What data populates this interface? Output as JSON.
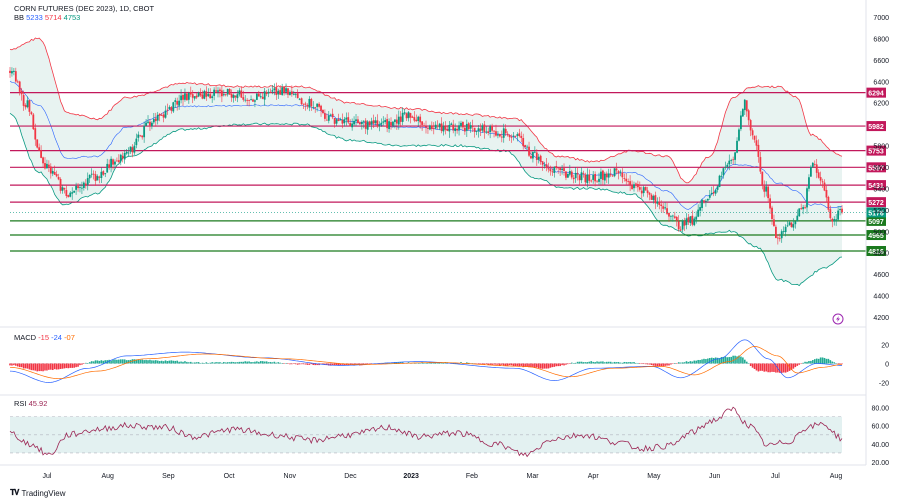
{
  "header": {
    "title": "CORN FUTURES (DEC 2023), 1D, CBOT",
    "bb_name": "BB",
    "bb_values": [
      "5233",
      "5714",
      "4753"
    ]
  },
  "macd_header": {
    "name": "MACD",
    "values": [
      "-15",
      "-24",
      "-07"
    ]
  },
  "rsi_header": {
    "name": "RSI",
    "value": "45.92"
  },
  "footer": {
    "brand": "TradingView"
  },
  "colors": {
    "up": "#089981",
    "down": "#f23645",
    "upper_band": "#f23645",
    "lower_band": "#089981",
    "basis": "#2962ff",
    "band_fill": "#e8f3f1",
    "resistance": "#c2185b",
    "support": "#1b7a1e",
    "rsi_line": "#9c2755",
    "rsi_fill": "#e3f1f1"
  },
  "chart_data": [
    {
      "type": "line",
      "title": "CORN FUTURES (DEC 2023), 1D, CBOT",
      "x_ticks": [
        "Jul",
        "Aug",
        "Sep",
        "Oct",
        "Nov",
        "Dec",
        "2023",
        "Feb",
        "Mar",
        "Apr",
        "May",
        "Jun",
        "Jul",
        "Aug"
      ],
      "y_ticks": [
        7000,
        6800,
        6600,
        6400,
        6200,
        5800,
        5600,
        5400,
        5200,
        5000,
        4800,
        4600,
        4400,
        4200
      ],
      "ylim": [
        4200,
        7000
      ],
      "horizontal_levels": [
        {
          "value": 6294,
          "label": "6294",
          "kind": "resistance"
        },
        {
          "value": 5982,
          "label": "5982",
          "kind": "resistance"
        },
        {
          "value": 5753,
          "label": "5753",
          "kind": "resistance"
        },
        {
          "value": 5597,
          "label": "5597",
          "kind": "resistance"
        },
        {
          "value": 5431,
          "label": "5431",
          "kind": "resistance"
        },
        {
          "value": 5272,
          "label": "5272",
          "kind": "resistance"
        },
        {
          "value": 5097,
          "label": "5097",
          "kind": "support"
        },
        {
          "value": 4965,
          "label": "4965",
          "kind": "support"
        },
        {
          "value": 4816,
          "label": "4816",
          "kind": "support"
        }
      ],
      "last_price": {
        "value": 5176,
        "label": "5176"
      },
      "close_anchors": [
        {
          "x": 0,
          "y": 6500
        },
        {
          "x": 8,
          "y": 6200
        },
        {
          "x": 18,
          "y": 5600
        },
        {
          "x": 30,
          "y": 5350
        },
        {
          "x": 42,
          "y": 5500
        },
        {
          "x": 58,
          "y": 5700
        },
        {
          "x": 75,
          "y": 6050
        },
        {
          "x": 90,
          "y": 6250
        },
        {
          "x": 110,
          "y": 6300
        },
        {
          "x": 125,
          "y": 6250
        },
        {
          "x": 140,
          "y": 6300
        },
        {
          "x": 155,
          "y": 6200
        },
        {
          "x": 165,
          "y": 6050
        },
        {
          "x": 180,
          "y": 6000
        },
        {
          "x": 195,
          "y": 6000
        },
        {
          "x": 205,
          "y": 6100
        },
        {
          "x": 215,
          "y": 5950
        },
        {
          "x": 230,
          "y": 5980
        },
        {
          "x": 245,
          "y": 5950
        },
        {
          "x": 260,
          "y": 5900
        },
        {
          "x": 270,
          "y": 5700
        },
        {
          "x": 282,
          "y": 5550
        },
        {
          "x": 298,
          "y": 5500
        },
        {
          "x": 312,
          "y": 5550
        },
        {
          "x": 322,
          "y": 5420
        },
        {
          "x": 335,
          "y": 5250
        },
        {
          "x": 345,
          "y": 5050
        },
        {
          "x": 350,
          "y": 5100
        },
        {
          "x": 360,
          "y": 5350
        },
        {
          "x": 372,
          "y": 5700
        },
        {
          "x": 378,
          "y": 6200
        },
        {
          "x": 382,
          "y": 5900
        },
        {
          "x": 388,
          "y": 5400
        },
        {
          "x": 395,
          "y": 4950
        },
        {
          "x": 400,
          "y": 5050
        },
        {
          "x": 408,
          "y": 5200
        },
        {
          "x": 413,
          "y": 5650
        },
        {
          "x": 418,
          "y": 5450
        },
        {
          "x": 423,
          "y": 5100
        },
        {
          "x": 428,
          "y": 5176
        }
      ],
      "bands_anchors": {
        "upper": [
          {
            "x": 0,
            "y": 6700
          },
          {
            "x": 15,
            "y": 6800
          },
          {
            "x": 30,
            "y": 6100
          },
          {
            "x": 45,
            "y": 6050
          },
          {
            "x": 60,
            "y": 6250
          },
          {
            "x": 90,
            "y": 6380
          },
          {
            "x": 120,
            "y": 6350
          },
          {
            "x": 150,
            "y": 6350
          },
          {
            "x": 175,
            "y": 6200
          },
          {
            "x": 200,
            "y": 6150
          },
          {
            "x": 230,
            "y": 6100
          },
          {
            "x": 260,
            "y": 6050
          },
          {
            "x": 282,
            "y": 5700
          },
          {
            "x": 300,
            "y": 5650
          },
          {
            "x": 320,
            "y": 5750
          },
          {
            "x": 338,
            "y": 5700
          },
          {
            "x": 348,
            "y": 5450
          },
          {
            "x": 360,
            "y": 5700
          },
          {
            "x": 372,
            "y": 6250
          },
          {
            "x": 382,
            "y": 6350
          },
          {
            "x": 395,
            "y": 6350
          },
          {
            "x": 405,
            "y": 6250
          },
          {
            "x": 412,
            "y": 5900
          },
          {
            "x": 428,
            "y": 5700
          }
        ],
        "lower": [
          {
            "x": 0,
            "y": 6100
          },
          {
            "x": 15,
            "y": 5550
          },
          {
            "x": 28,
            "y": 5250
          },
          {
            "x": 45,
            "y": 5350
          },
          {
            "x": 60,
            "y": 5700
          },
          {
            "x": 90,
            "y": 5950
          },
          {
            "x": 120,
            "y": 6000
          },
          {
            "x": 150,
            "y": 6000
          },
          {
            "x": 175,
            "y": 5850
          },
          {
            "x": 200,
            "y": 5800
          },
          {
            "x": 230,
            "y": 5800
          },
          {
            "x": 255,
            "y": 5750
          },
          {
            "x": 270,
            "y": 5500
          },
          {
            "x": 285,
            "y": 5400
          },
          {
            "x": 300,
            "y": 5400
          },
          {
            "x": 320,
            "y": 5350
          },
          {
            "x": 338,
            "y": 5050
          },
          {
            "x": 350,
            "y": 4960
          },
          {
            "x": 370,
            "y": 5000
          },
          {
            "x": 385,
            "y": 4850
          },
          {
            "x": 395,
            "y": 4550
          },
          {
            "x": 405,
            "y": 4500
          },
          {
            "x": 418,
            "y": 4650
          },
          {
            "x": 428,
            "y": 4753
          }
        ]
      }
    },
    {
      "type": "bar",
      "title": "MACD",
      "y_ticks": [
        20,
        0,
        -20
      ],
      "ylim": [
        -30,
        30
      ],
      "histogram_anchors": [
        {
          "x": 0,
          "y": -2
        },
        {
          "x": 15,
          "y": -8
        },
        {
          "x": 30,
          "y": -5
        },
        {
          "x": 45,
          "y": 3
        },
        {
          "x": 60,
          "y": 4
        },
        {
          "x": 80,
          "y": 3
        },
        {
          "x": 100,
          "y": 1
        },
        {
          "x": 130,
          "y": 2
        },
        {
          "x": 150,
          "y": -1
        },
        {
          "x": 175,
          "y": -2
        },
        {
          "x": 200,
          "y": 1
        },
        {
          "x": 230,
          "y": 1
        },
        {
          "x": 255,
          "y": -2
        },
        {
          "x": 275,
          "y": -5
        },
        {
          "x": 295,
          "y": 2
        },
        {
          "x": 320,
          "y": 1
        },
        {
          "x": 335,
          "y": -3
        },
        {
          "x": 348,
          "y": 2
        },
        {
          "x": 362,
          "y": 6
        },
        {
          "x": 375,
          "y": 8
        },
        {
          "x": 385,
          "y": -8
        },
        {
          "x": 398,
          "y": -10
        },
        {
          "x": 410,
          "y": 2
        },
        {
          "x": 418,
          "y": 6
        },
        {
          "x": 428,
          "y": -1
        }
      ],
      "macd_anchors": [
        {
          "x": 0,
          "y": -8
        },
        {
          "x": 20,
          "y": -20
        },
        {
          "x": 40,
          "y": -5
        },
        {
          "x": 60,
          "y": 8
        },
        {
          "x": 90,
          "y": 12
        },
        {
          "x": 130,
          "y": 6
        },
        {
          "x": 170,
          "y": -2
        },
        {
          "x": 210,
          "y": 2
        },
        {
          "x": 260,
          "y": -5
        },
        {
          "x": 280,
          "y": -18
        },
        {
          "x": 300,
          "y": -5
        },
        {
          "x": 330,
          "y": -3
        },
        {
          "x": 345,
          "y": -15
        },
        {
          "x": 365,
          "y": 5
        },
        {
          "x": 378,
          "y": 25
        },
        {
          "x": 390,
          "y": 5
        },
        {
          "x": 400,
          "y": -15
        },
        {
          "x": 415,
          "y": 0
        },
        {
          "x": 428,
          "y": -2
        }
      ],
      "signal_anchors": [
        {
          "x": 0,
          "y": -4
        },
        {
          "x": 25,
          "y": -16
        },
        {
          "x": 45,
          "y": -8
        },
        {
          "x": 70,
          "y": 5
        },
        {
          "x": 100,
          "y": 10
        },
        {
          "x": 140,
          "y": 5
        },
        {
          "x": 180,
          "y": -1
        },
        {
          "x": 220,
          "y": 1
        },
        {
          "x": 265,
          "y": -3
        },
        {
          "x": 288,
          "y": -14
        },
        {
          "x": 310,
          "y": -5
        },
        {
          "x": 335,
          "y": -3
        },
        {
          "x": 352,
          "y": -12
        },
        {
          "x": 370,
          "y": 2
        },
        {
          "x": 383,
          "y": 18
        },
        {
          "x": 395,
          "y": 8
        },
        {
          "x": 405,
          "y": -10
        },
        {
          "x": 418,
          "y": -4
        },
        {
          "x": 428,
          "y": -1
        }
      ]
    },
    {
      "type": "line",
      "title": "RSI",
      "y_ticks": [
        80,
        60,
        40,
        20
      ],
      "ylim": [
        20,
        85
      ],
      "band": [
        30,
        70
      ],
      "rsi_anchors": [
        {
          "x": 0,
          "y": 52
        },
        {
          "x": 10,
          "y": 40
        },
        {
          "x": 20,
          "y": 28
        },
        {
          "x": 30,
          "y": 50
        },
        {
          "x": 45,
          "y": 56
        },
        {
          "x": 60,
          "y": 60
        },
        {
          "x": 80,
          "y": 58
        },
        {
          "x": 95,
          "y": 48
        },
        {
          "x": 115,
          "y": 56
        },
        {
          "x": 135,
          "y": 50
        },
        {
          "x": 155,
          "y": 44
        },
        {
          "x": 175,
          "y": 50
        },
        {
          "x": 195,
          "y": 58
        },
        {
          "x": 210,
          "y": 48
        },
        {
          "x": 230,
          "y": 52
        },
        {
          "x": 250,
          "y": 40
        },
        {
          "x": 265,
          "y": 28
        },
        {
          "x": 280,
          "y": 46
        },
        {
          "x": 295,
          "y": 50
        },
        {
          "x": 312,
          "y": 42
        },
        {
          "x": 325,
          "y": 35
        },
        {
          "x": 340,
          "y": 38
        },
        {
          "x": 350,
          "y": 52
        },
        {
          "x": 362,
          "y": 66
        },
        {
          "x": 372,
          "y": 78
        },
        {
          "x": 380,
          "y": 60
        },
        {
          "x": 390,
          "y": 38
        },
        {
          "x": 400,
          "y": 42
        },
        {
          "x": 410,
          "y": 58
        },
        {
          "x": 418,
          "y": 62
        },
        {
          "x": 428,
          "y": 46
        }
      ],
      "last_value": 45.92
    }
  ]
}
